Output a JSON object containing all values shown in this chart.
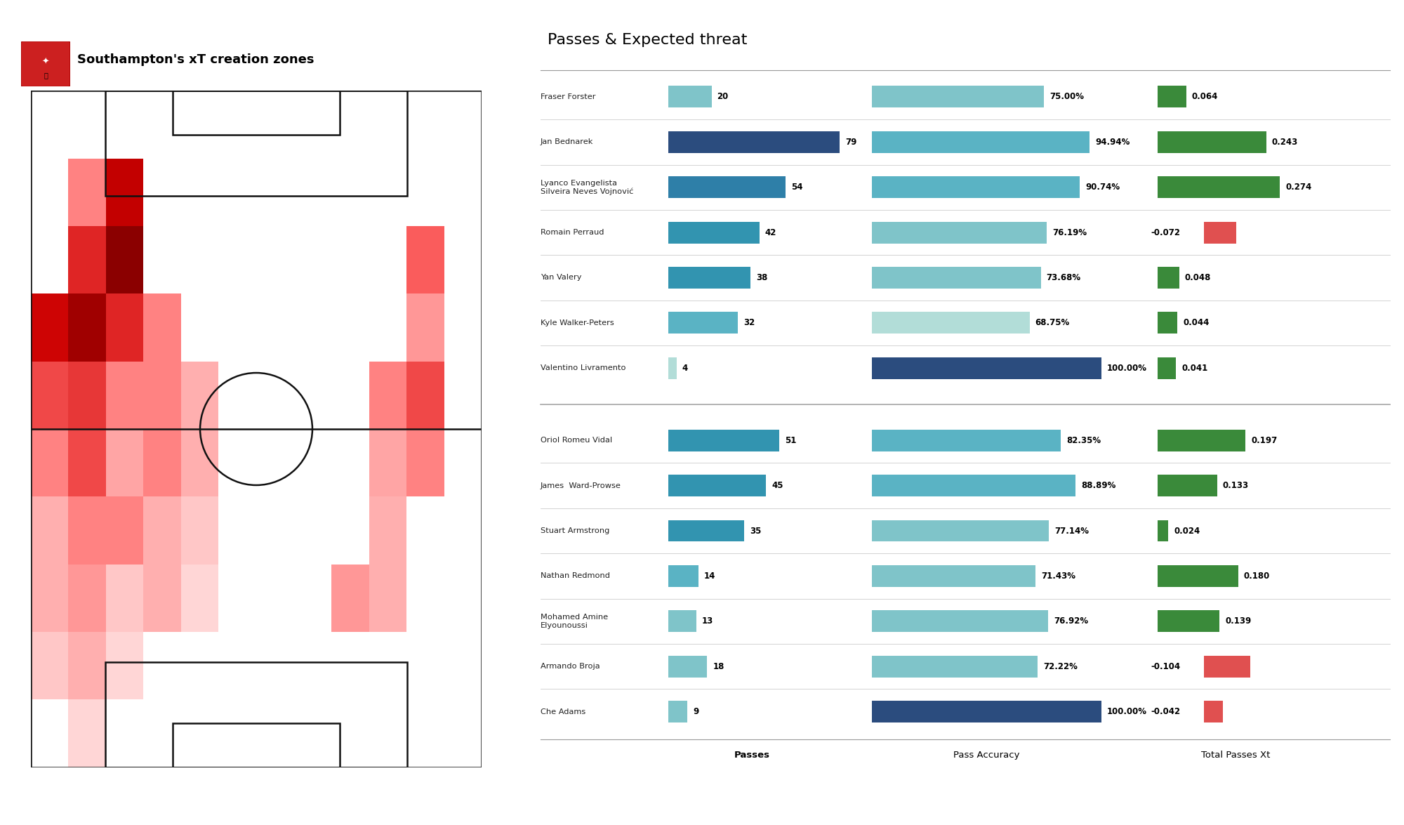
{
  "title_left": "Southampton's xT creation zones",
  "title_right": "Passes & Expected threat",
  "players": [
    {
      "name": "Fraser Forster",
      "passes": 20,
      "accuracy": 75.0,
      "xT": 0.064,
      "group": "def"
    },
    {
      "name": "Jan Bednarek",
      "passes": 79,
      "accuracy": 94.94,
      "xT": 0.243,
      "group": "def"
    },
    {
      "name": "Lyanco Evangelista\nSilveira Neves Vojnović",
      "passes": 54,
      "accuracy": 90.74,
      "xT": 0.274,
      "group": "def"
    },
    {
      "name": "Romain Perraud",
      "passes": 42,
      "accuracy": 76.19,
      "xT": -0.072,
      "group": "def"
    },
    {
      "name": "Yan Valery",
      "passes": 38,
      "accuracy": 73.68,
      "xT": 0.048,
      "group": "def"
    },
    {
      "name": "Kyle Walker-Peters",
      "passes": 32,
      "accuracy": 68.75,
      "xT": 0.044,
      "group": "def"
    },
    {
      "name": "Valentino Livramento",
      "passes": 4,
      "accuracy": 100.0,
      "xT": 0.041,
      "group": "def"
    },
    {
      "name": "Oriol Romeu Vidal",
      "passes": 51,
      "accuracy": 82.35,
      "xT": 0.197,
      "group": "mid"
    },
    {
      "name": "James  Ward-Prowse",
      "passes": 45,
      "accuracy": 88.89,
      "xT": 0.133,
      "group": "mid"
    },
    {
      "name": "Stuart Armstrong",
      "passes": 35,
      "accuracy": 77.14,
      "xT": 0.024,
      "group": "mid"
    },
    {
      "name": "Nathan Redmond",
      "passes": 14,
      "accuracy": 71.43,
      "xT": 0.18,
      "group": "mid"
    },
    {
      "name": "Mohamed Amine\nElyounoussi",
      "passes": 13,
      "accuracy": 76.92,
      "xT": 0.139,
      "group": "mid"
    },
    {
      "name": "Armando Broja",
      "passes": 18,
      "accuracy": 72.22,
      "xT": -0.104,
      "group": "mid"
    },
    {
      "name": "Che Adams",
      "passes": 9,
      "accuracy": 100.0,
      "xT": -0.042,
      "group": "mid"
    }
  ],
  "passes_colors": [
    "#7fc4c9",
    "#2b4c7e",
    "#2e7fa8",
    "#3294b0",
    "#3294b0",
    "#5ab3c4",
    "#b2ddd8",
    "#3294b0",
    "#3294b0",
    "#3294b0",
    "#5ab3c4",
    "#7fc4c9",
    "#7fc4c9",
    "#7fc4c9"
  ],
  "accuracy_colors": [
    "#7fc4c9",
    "#5ab3c4",
    "#5ab3c4",
    "#7fc4c9",
    "#7fc4c9",
    "#b2ddd8",
    "#2b4c7e",
    "#5ab3c4",
    "#5ab3c4",
    "#7fc4c9",
    "#7fc4c9",
    "#7fc4c9",
    "#7fc4c9",
    "#2b4c7e"
  ],
  "xT_pos_color": "#3a8a3a",
  "xT_neg_color": "#e05050",
  "heatmap_data": [
    [
      0,
      0,
      0,
      0,
      0,
      0,
      0,
      0,
      0,
      0,
      0,
      0
    ],
    [
      0,
      0.3,
      0.7,
      0,
      0,
      0,
      0,
      0,
      0,
      0,
      0,
      0
    ],
    [
      0,
      0.55,
      0.95,
      0,
      0,
      0,
      0,
      0,
      0,
      0,
      0.4,
      0
    ],
    [
      0.65,
      0.85,
      0.55,
      0.3,
      0,
      0,
      0,
      0,
      0,
      0,
      0.25,
      0
    ],
    [
      0.45,
      0.5,
      0.3,
      0.3,
      0.2,
      0,
      0,
      0,
      0,
      0.3,
      0.45,
      0
    ],
    [
      0.3,
      0.45,
      0.22,
      0.3,
      0.2,
      0,
      0,
      0,
      0,
      0.22,
      0.3,
      0
    ],
    [
      0.2,
      0.3,
      0.3,
      0.2,
      0.15,
      0,
      0,
      0,
      0,
      0.2,
      0,
      0
    ],
    [
      0.2,
      0.25,
      0.15,
      0.2,
      0.1,
      0,
      0,
      0,
      0.25,
      0.2,
      0,
      0
    ],
    [
      0.15,
      0.2,
      0.1,
      0,
      0,
      0,
      0,
      0,
      0,
      0,
      0,
      0
    ],
    [
      0,
      0.1,
      0,
      0,
      0,
      0,
      0,
      0,
      0,
      0,
      0,
      0
    ]
  ],
  "field_line_color": "#111111",
  "divider_color": "#cccccc",
  "fig_width": 20.0,
  "fig_height": 11.75,
  "dpi": 100
}
